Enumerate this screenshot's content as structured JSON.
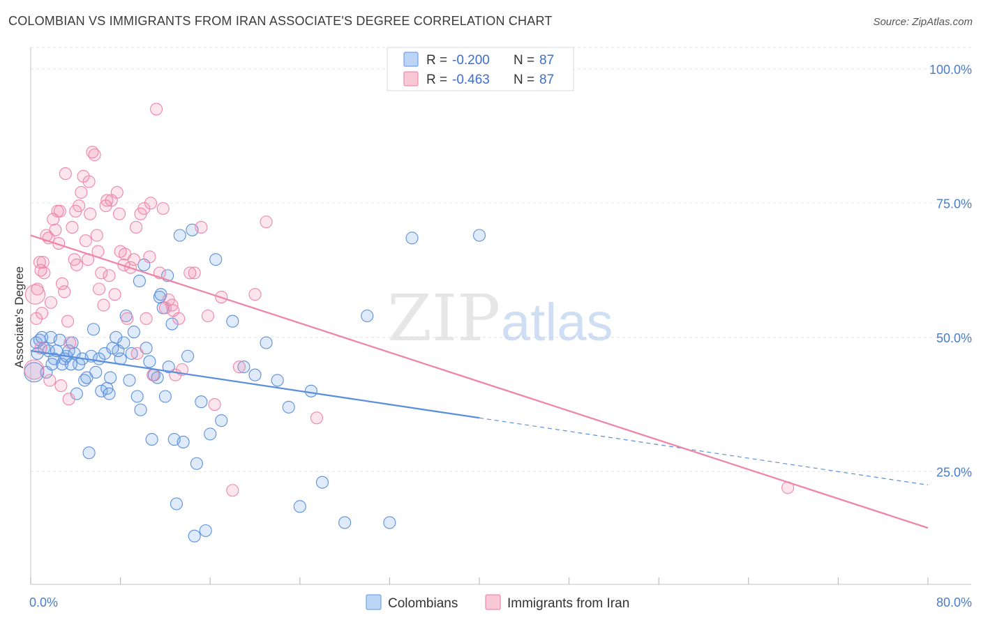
{
  "title": "COLOMBIAN VS IMMIGRANTS FROM IRAN ASSOCIATE'S DEGREE CORRELATION CHART",
  "source": "Source: ZipAtlas.com",
  "watermark": {
    "zip": "ZIP",
    "atlas": "atlas"
  },
  "legend_top": {
    "rows": [
      {
        "r_label": "R =",
        "r_value": "-0.200",
        "n_label": "N =",
        "n_value": "87",
        "color": "#6fa3e8"
      },
      {
        "r_label": "R =",
        "r_value": "-0.463",
        "n_label": "N =",
        "n_value": "87",
        "color": "#f08aab"
      }
    ]
  },
  "chart_data": {
    "type": "scatter",
    "title": "COLOMBIAN VS IMMIGRANTS FROM IRAN ASSOCIATE'S DEGREE CORRELATION CHART",
    "xlabel": "",
    "ylabel": "Associate's Degree",
    "xlim": [
      0,
      80
    ],
    "ylim": [
      4,
      104
    ],
    "x_tick_labels": [
      {
        "value": 0,
        "label": "0.0%"
      },
      {
        "value": 80,
        "label": "80.0%"
      }
    ],
    "y_tick_labels": [
      {
        "value": 100,
        "label": "100.0%"
      },
      {
        "value": 75,
        "label": "75.0%"
      },
      {
        "value": 50,
        "label": "50.0%"
      },
      {
        "value": 25,
        "label": "25.0%"
      }
    ],
    "grid": true,
    "legend_position": "bottom",
    "series": [
      {
        "name": "Colombians",
        "color": "#5b8fdb",
        "trend": {
          "x0": 0,
          "y0": 47.5,
          "x1": 40,
          "y1": 35,
          "dash_to_x": 80,
          "dash_to_y": 22.5
        },
        "points": [
          [
            0.3,
            43.5
          ],
          [
            0.5,
            49
          ],
          [
            0.8,
            49.5
          ],
          [
            1.0,
            50
          ],
          [
            1.2,
            48
          ],
          [
            1.4,
            43.5
          ],
          [
            1.6,
            47.5
          ],
          [
            1.8,
            50
          ],
          [
            2.1,
            46
          ],
          [
            2.3,
            47.5
          ],
          [
            2.6,
            49.5
          ],
          [
            2.8,
            45
          ],
          [
            3.0,
            46
          ],
          [
            3.2,
            46.5
          ],
          [
            3.4,
            47.5
          ],
          [
            3.7,
            49
          ],
          [
            3.9,
            47
          ],
          [
            4.1,
            39.5
          ],
          [
            4.3,
            45
          ],
          [
            4.6,
            46
          ],
          [
            4.8,
            42
          ],
          [
            5.0,
            42.5
          ],
          [
            5.2,
            28.5
          ],
          [
            5.4,
            46.5
          ],
          [
            5.6,
            51.5
          ],
          [
            5.8,
            43.5
          ],
          [
            6.1,
            46
          ],
          [
            6.3,
            40
          ],
          [
            6.6,
            47
          ],
          [
            6.8,
            40.5
          ],
          [
            7.0,
            39.5
          ],
          [
            7.1,
            42.5
          ],
          [
            7.3,
            48
          ],
          [
            7.6,
            50
          ],
          [
            7.8,
            47.5
          ],
          [
            8.0,
            46
          ],
          [
            8.3,
            49
          ],
          [
            8.5,
            54
          ],
          [
            8.8,
            42
          ],
          [
            9.0,
            47
          ],
          [
            9.2,
            51
          ],
          [
            9.5,
            39
          ],
          [
            9.8,
            36.5
          ],
          [
            10.1,
            63.5
          ],
          [
            10.3,
            48
          ],
          [
            10.6,
            45.5
          ],
          [
            10.8,
            31
          ],
          [
            11.0,
            43
          ],
          [
            11.3,
            42.5
          ],
          [
            11.5,
            57.5
          ],
          [
            11.8,
            55.5
          ],
          [
            12.0,
            39
          ],
          [
            12.3,
            44.5
          ],
          [
            12.6,
            52.5
          ],
          [
            12.8,
            31
          ],
          [
            13.0,
            19
          ],
          [
            13.3,
            69
          ],
          [
            13.6,
            30.5
          ],
          [
            14.0,
            46.5
          ],
          [
            14.4,
            70
          ],
          [
            14.8,
            26.5
          ],
          [
            15.2,
            38
          ],
          [
            15.6,
            14
          ],
          [
            16.0,
            32
          ],
          [
            16.5,
            64.5
          ],
          [
            17.0,
            34.5
          ],
          [
            18.0,
            53
          ],
          [
            19.0,
            44.5
          ],
          [
            20.0,
            43
          ],
          [
            21.0,
            49
          ],
          [
            22.0,
            42
          ],
          [
            23.0,
            37
          ],
          [
            24.0,
            18.5
          ],
          [
            25.0,
            40
          ],
          [
            26.0,
            23
          ],
          [
            28.0,
            15.5
          ],
          [
            30.0,
            54
          ],
          [
            32.0,
            15.5
          ],
          [
            34.0,
            68.5
          ],
          [
            40.0,
            69
          ],
          [
            9.7,
            60.5
          ],
          [
            11.6,
            58
          ],
          [
            12.2,
            61.5
          ],
          [
            0.6,
            47
          ],
          [
            1.9,
            45
          ],
          [
            3.6,
            45
          ],
          [
            14.6,
            13
          ]
        ]
      },
      {
        "name": "Immigrants from Iran",
        "color": "#ee86a7",
        "trend": {
          "x0": 0,
          "y0": 69,
          "x1": 80,
          "y1": 14.5
        },
        "points": [
          [
            0.3,
            44
          ],
          [
            0.5,
            53.5
          ],
          [
            0.6,
            59
          ],
          [
            0.8,
            64
          ],
          [
            0.9,
            62.5
          ],
          [
            1.0,
            54.5
          ],
          [
            1.2,
            62
          ],
          [
            1.4,
            69
          ],
          [
            1.6,
            68.5
          ],
          [
            1.8,
            56.5
          ],
          [
            2.0,
            72
          ],
          [
            2.2,
            70
          ],
          [
            2.4,
            73.5
          ],
          [
            2.6,
            73.5
          ],
          [
            2.8,
            60
          ],
          [
            3.0,
            58.5
          ],
          [
            3.1,
            80.5
          ],
          [
            3.3,
            53
          ],
          [
            3.5,
            49
          ],
          [
            3.7,
            70.5
          ],
          [
            3.9,
            64.5
          ],
          [
            4.1,
            63.5
          ],
          [
            4.3,
            74.5
          ],
          [
            4.5,
            77
          ],
          [
            4.7,
            80
          ],
          [
            4.9,
            68
          ],
          [
            5.1,
            64.5
          ],
          [
            5.3,
            73
          ],
          [
            5.5,
            84.5
          ],
          [
            5.7,
            84
          ],
          [
            5.9,
            69
          ],
          [
            6.1,
            59
          ],
          [
            6.3,
            62
          ],
          [
            6.5,
            56
          ],
          [
            6.8,
            75.5
          ],
          [
            7.0,
            61.5
          ],
          [
            7.2,
            75.5
          ],
          [
            7.5,
            58
          ],
          [
            7.7,
            77
          ],
          [
            8.0,
            66
          ],
          [
            8.3,
            63.5
          ],
          [
            8.6,
            53.5
          ],
          [
            8.9,
            63
          ],
          [
            9.2,
            64.5
          ],
          [
            9.5,
            47
          ],
          [
            9.8,
            73
          ],
          [
            10.1,
            74
          ],
          [
            10.3,
            53.5
          ],
          [
            10.6,
            65
          ],
          [
            10.9,
            43
          ],
          [
            11.2,
            92.5
          ],
          [
            11.5,
            62
          ],
          [
            11.8,
            74
          ],
          [
            12.0,
            55.5
          ],
          [
            12.3,
            57
          ],
          [
            12.6,
            56
          ],
          [
            12.9,
            43
          ],
          [
            13.2,
            53.5
          ],
          [
            13.5,
            44
          ],
          [
            14.2,
            62
          ],
          [
            14.6,
            62
          ],
          [
            15.2,
            70.5
          ],
          [
            15.8,
            54
          ],
          [
            16.4,
            37.5
          ],
          [
            17.0,
            57.5
          ],
          [
            18.0,
            21.5
          ],
          [
            18.6,
            44.5
          ],
          [
            20.0,
            58
          ],
          [
            21.0,
            71.5
          ],
          [
            25.5,
            35
          ],
          [
            67.5,
            22
          ],
          [
            0.4,
            58
          ],
          [
            1.1,
            64
          ],
          [
            2.5,
            67.5
          ],
          [
            4.0,
            73.5
          ],
          [
            5.2,
            79
          ],
          [
            6.7,
            74.5
          ],
          [
            8.4,
            65.5
          ],
          [
            9.4,
            70.5
          ],
          [
            12.7,
            55
          ],
          [
            2.7,
            41
          ],
          [
            1.7,
            42
          ],
          [
            3.4,
            38.5
          ],
          [
            0.9,
            48
          ],
          [
            6.0,
            66
          ],
          [
            7.9,
            73
          ],
          [
            10.7,
            75
          ]
        ]
      }
    ]
  },
  "bottom_legend": [
    {
      "label": "Colombians",
      "color": "#6fa3e8"
    },
    {
      "label": "Immigrants from Iran",
      "color": "#f08aab"
    }
  ]
}
